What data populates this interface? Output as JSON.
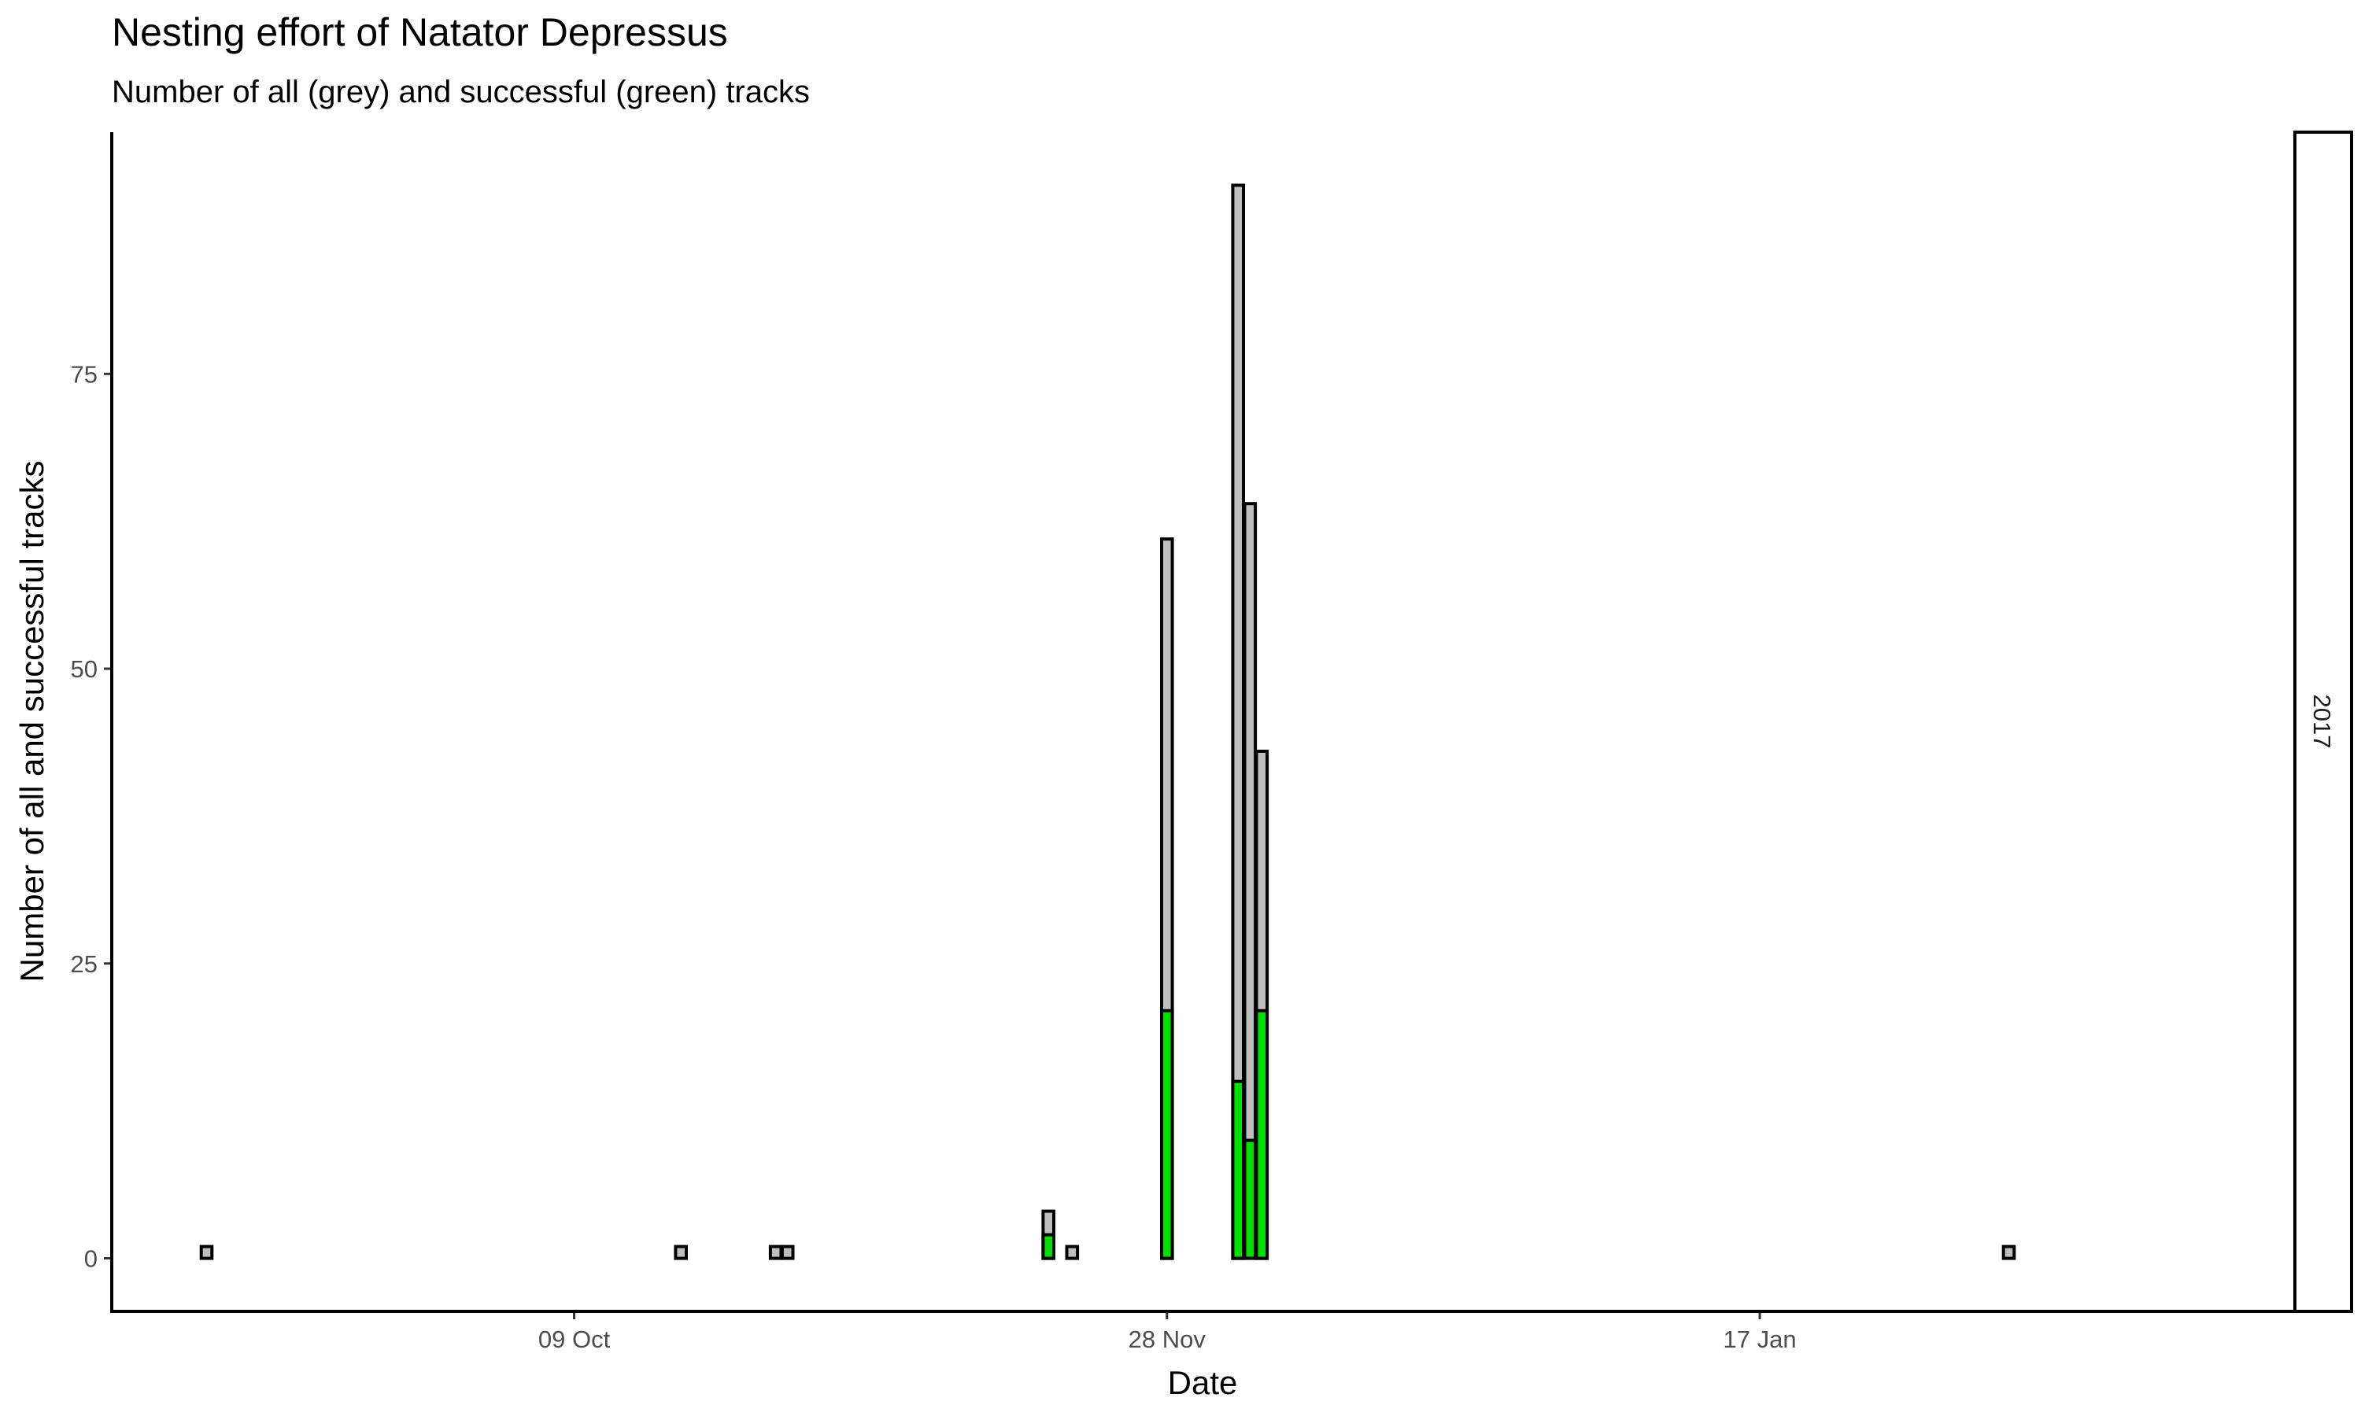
{
  "chart_data": {
    "type": "bar",
    "title": "Nesting effort of Natator Depressus",
    "subtitle": "Number of all (grey) and successful (green) tracks",
    "xlabel": "Date",
    "ylabel": "Number of all and successful tracks",
    "facet_label": "2017",
    "x_is_date": true,
    "xlim": [
      "2017-08-31",
      "2018-03-03"
    ],
    "ylim": [
      -4.5,
      95.5
    ],
    "x_ticks": [
      {
        "date": "2017-10-09",
        "label": "09 Oct"
      },
      {
        "date": "2017-11-28",
        "label": "28 Nov"
      },
      {
        "date": "2018-01-17",
        "label": "17 Jan"
      }
    ],
    "y_ticks": [
      0,
      25,
      50,
      75
    ],
    "grid": false,
    "colors": {
      "all": "#bebebe",
      "successful": "#00e000",
      "outline": "#000000"
    },
    "series": [
      {
        "name": "all tracks",
        "points": [
          {
            "date": "2017-09-08",
            "value": 1
          },
          {
            "date": "2017-10-18",
            "value": 1
          },
          {
            "date": "2017-10-26",
            "value": 1
          },
          {
            "date": "2017-10-27",
            "value": 1
          },
          {
            "date": "2017-11-18",
            "value": 4
          },
          {
            "date": "2017-11-20",
            "value": 1
          },
          {
            "date": "2017-11-28",
            "value": 61
          },
          {
            "date": "2017-12-04",
            "value": 91
          },
          {
            "date": "2017-12-05",
            "value": 64
          },
          {
            "date": "2017-12-06",
            "value": 43
          },
          {
            "date": "2018-02-07",
            "value": 1
          }
        ]
      },
      {
        "name": "successful tracks",
        "points": [
          {
            "date": "2017-11-18",
            "value": 2
          },
          {
            "date": "2017-11-28",
            "value": 21
          },
          {
            "date": "2017-12-04",
            "value": 15
          },
          {
            "date": "2017-12-05",
            "value": 10
          },
          {
            "date": "2017-12-06",
            "value": 21
          }
        ]
      }
    ]
  }
}
